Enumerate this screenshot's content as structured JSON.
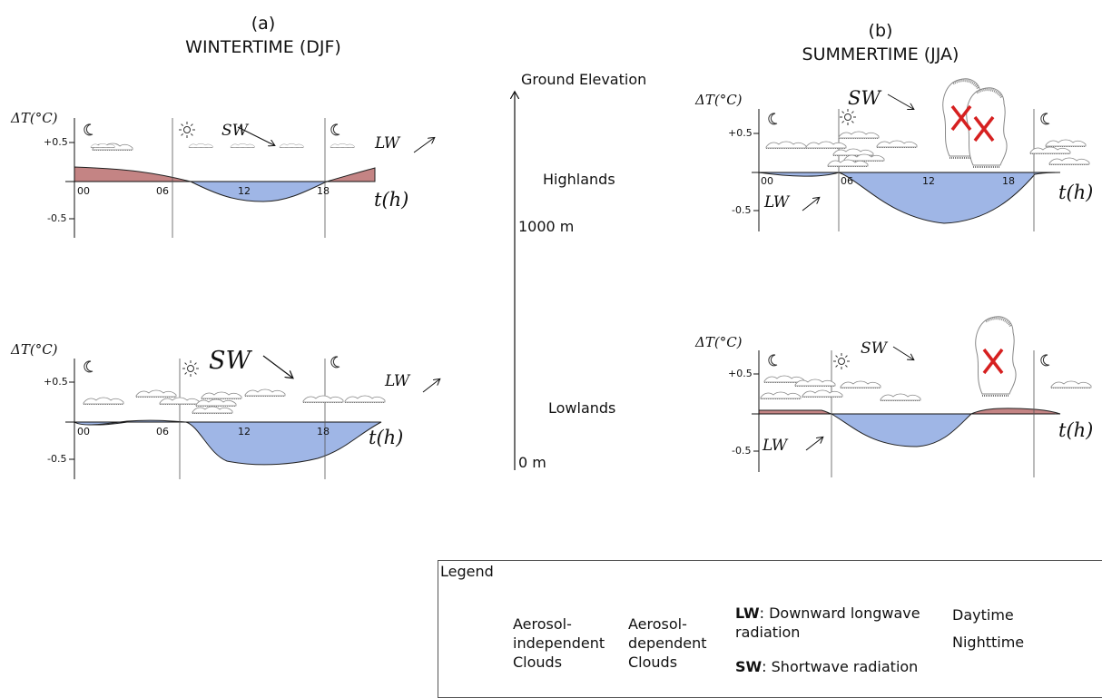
{
  "panel_a": {
    "label": "(a)",
    "title": "WINTERTIME (DJF)",
    "highlands": {
      "y_axis_label": "ΔT(°C)",
      "y_ticks": [
        "+0.5",
        "-0.5"
      ],
      "x_ticks": [
        "00",
        "06",
        "12",
        "18"
      ],
      "x_axis_label": "t(h)",
      "sw_label": "SW",
      "lw_label": "LW"
    },
    "lowlands": {
      "y_axis_label": "ΔT(°C)",
      "y_ticks": [
        "+0.5",
        "-0.5"
      ],
      "x_ticks": [
        "00",
        "06",
        "12",
        "18"
      ],
      "x_axis_label": "t(h)",
      "sw_label": "SW",
      "lw_label": "LW"
    }
  },
  "panel_b": {
    "label": "(b)",
    "title": "SUMMERTIME (JJA)",
    "highlands": {
      "y_axis_label": "ΔT(°C)",
      "y_ticks": [
        "+0.5",
        "-0.5"
      ],
      "x_ticks": [
        "00",
        "06",
        "12",
        "18"
      ],
      "x_axis_label": "t(h)",
      "sw_label": "SW",
      "lw_label": "LW"
    },
    "lowlands": {
      "y_axis_label": "ΔT(°C)",
      "y_ticks": [
        "+0.5",
        "-0.5"
      ],
      "x_axis_label": "t(h)",
      "sw_label": "SW",
      "lw_label": "LW"
    }
  },
  "elevation": {
    "label": "Ground Elevation",
    "highlands": "Highlands",
    "mid_value": "1000 m",
    "lowlands": "Lowlands",
    "bottom_value": "0 m"
  },
  "legend": {
    "title": "Legend",
    "aerosol_independent": [
      "Aerosol-",
      "independent",
      "Clouds"
    ],
    "aerosol_dependent": [
      "Aerosol-",
      "dependent",
      "Clouds"
    ],
    "lw_abbr": "LW",
    "lw_text_1": ": Downward longwave",
    "lw_text_2": "radiation",
    "sw_abbr": "SW",
    "sw_text": ": Shortwave radiation",
    "daytime": "Daytime",
    "nighttime": "Nighttime"
  },
  "colors": {
    "warming": "#c48484",
    "cooling": "#9fb6e6",
    "cross": "#d62020"
  }
}
